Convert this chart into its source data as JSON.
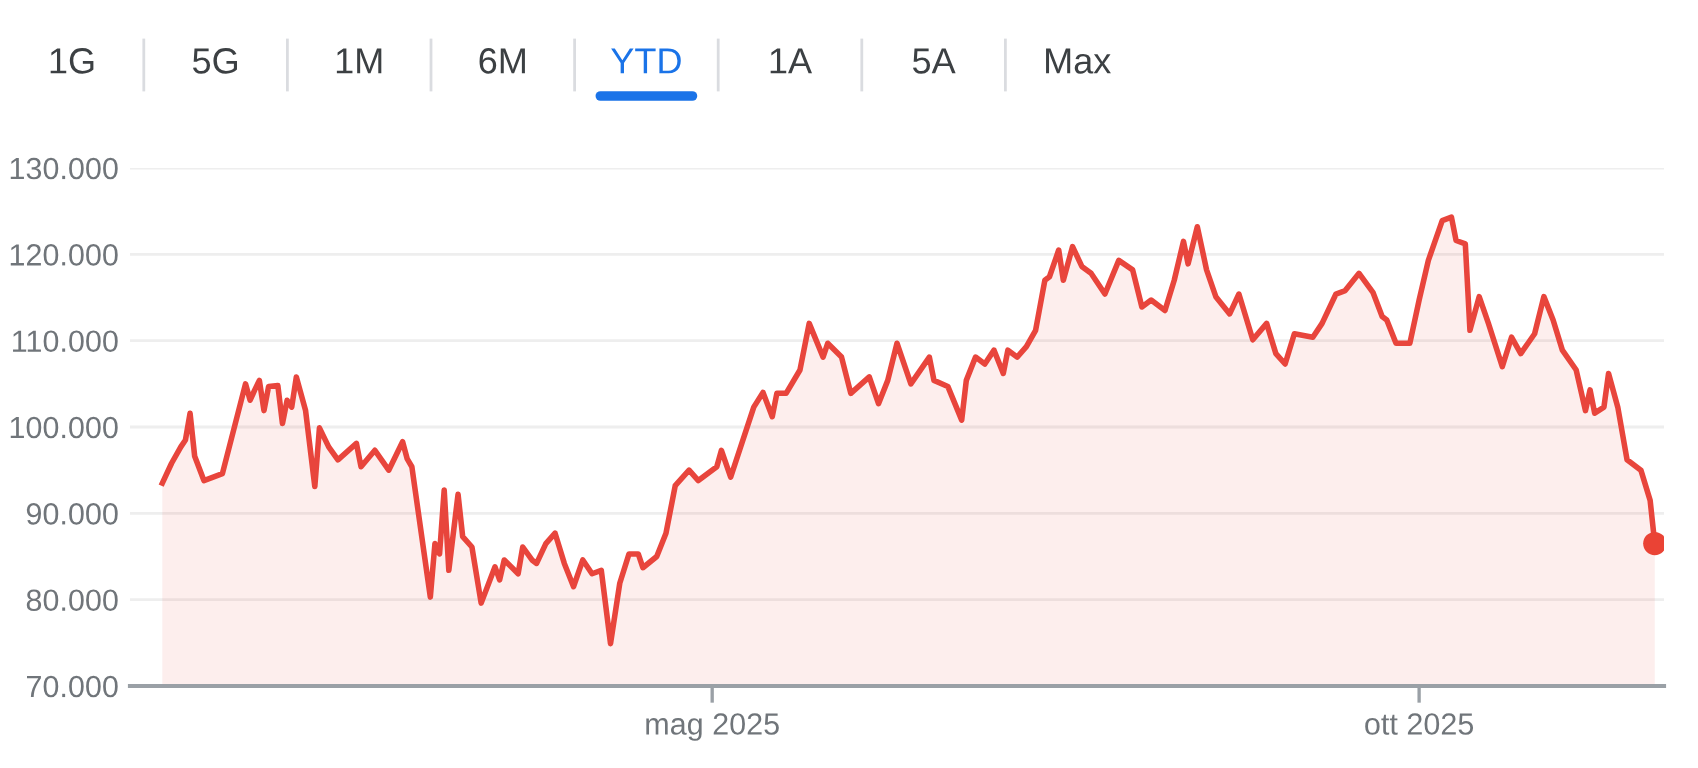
{
  "chart_data": {
    "type": "area",
    "annotations": [
      "1G",
      "5G",
      "1M",
      "6M",
      "YTD",
      "1A",
      "5A",
      "Max"
    ],
    "x": [
      "2025-01-02",
      "2025-01-04",
      "2025-01-06",
      "2025-01-07",
      "2025-01-08",
      "2025-01-09",
      "2025-01-11",
      "2025-01-15",
      "2025-01-20",
      "2025-01-21",
      "2025-01-22",
      "2025-01-23",
      "2025-01-24",
      "2025-01-25",
      "2025-01-27",
      "2025-01-28",
      "2025-01-29",
      "2025-01-30",
      "2025-01-31",
      "2025-02-02",
      "2025-02-04",
      "2025-02-05",
      "2025-02-07",
      "2025-02-09",
      "2025-02-13",
      "2025-02-14",
      "2025-02-17",
      "2025-02-20",
      "2025-02-23",
      "2025-02-24",
      "2025-02-25",
      "2025-03-01",
      "2025-03-02",
      "2025-03-03",
      "2025-03-04",
      "2025-03-05",
      "2025-03-07",
      "2025-03-08",
      "2025-03-10",
      "2025-03-12",
      "2025-03-15",
      "2025-03-16",
      "2025-03-17",
      "2025-03-20",
      "2025-03-21",
      "2025-03-23",
      "2025-03-24",
      "2025-03-26",
      "2025-03-28",
      "2025-03-30",
      "2025-04-01",
      "2025-04-03",
      "2025-04-05",
      "2025-04-07",
      "2025-04-09",
      "2025-04-11",
      "2025-04-13",
      "2025-04-15",
      "2025-04-16",
      "2025-04-19",
      "2025-04-21",
      "2025-04-23",
      "2025-04-26",
      "2025-04-28",
      "2025-05-02",
      "2025-05-03",
      "2025-05-05",
      "2025-05-10",
      "2025-05-12",
      "2025-05-14",
      "2025-05-15",
      "2025-05-17",
      "2025-05-20",
      "2025-05-22",
      "2025-05-25",
      "2025-05-26",
      "2025-05-29",
      "2025-05-31",
      "2025-06-04",
      "2025-06-06",
      "2025-06-08",
      "2025-06-10",
      "2025-06-13",
      "2025-06-17",
      "2025-06-18",
      "2025-06-21",
      "2025-06-24",
      "2025-06-25",
      "2025-06-27",
      "2025-06-29",
      "2025-07-01",
      "2025-07-03",
      "2025-07-04",
      "2025-07-06",
      "2025-07-08",
      "2025-07-10",
      "2025-07-12",
      "2025-07-13",
      "2025-07-15",
      "2025-07-16",
      "2025-07-18",
      "2025-07-20",
      "2025-07-22",
      "2025-07-25",
      "2025-07-28",
      "2025-07-31",
      "2025-08-02",
      "2025-08-04",
      "2025-08-07",
      "2025-08-09",
      "2025-08-11",
      "2025-08-12",
      "2025-08-14",
      "2025-08-16",
      "2025-08-18",
      "2025-08-21",
      "2025-08-23",
      "2025-08-26",
      "2025-08-29",
      "2025-08-31",
      "2025-09-02",
      "2025-09-04",
      "2025-09-08",
      "2025-09-10",
      "2025-09-13",
      "2025-09-15",
      "2025-09-18",
      "2025-09-21",
      "2025-09-23",
      "2025-09-24",
      "2025-09-26",
      "2025-09-29",
      "2025-10-01",
      "2025-10-03",
      "2025-10-06",
      "2025-10-08",
      "2025-10-09",
      "2025-10-11",
      "2025-10-12",
      "2025-10-14",
      "2025-10-16",
      "2025-10-19",
      "2025-10-21",
      "2025-10-23",
      "2025-10-26",
      "2025-10-28",
      "2025-10-30",
      "2025-11-01",
      "2025-11-04",
      "2025-11-06",
      "2025-11-07",
      "2025-11-08",
      "2025-11-10",
      "2025-11-11",
      "2025-11-13",
      "2025-11-15",
      "2025-11-18",
      "2025-11-20",
      "2025-11-21"
    ],
    "series": [
      {
        "color": "#e8453c",
        "marker": "none",
        "values": [
          93500,
          95800,
          97700,
          98500,
          101600,
          96600,
          93800,
          94600,
          105000,
          103100,
          104300,
          105400,
          101900,
          104700,
          104800,
          100400,
          103100,
          102300,
          105800,
          101900,
          93100,
          99900,
          97700,
          96200,
          98100,
          95400,
          97300,
          95000,
          98300,
          96300,
          95400,
          80300,
          86500,
          85300,
          92700,
          83400,
          92200,
          87300,
          86100,
          79600,
          83800,
          82300,
          84600,
          83000,
          86100,
          84600,
          84200,
          86500,
          87700,
          84200,
          81500,
          84600,
          83000,
          83400,
          74900,
          81900,
          85300,
          85300,
          83700,
          85000,
          87700,
          93200,
          95000,
          93800,
          95400,
          97300,
          94200,
          102300,
          104000,
          101200,
          103900,
          103900,
          106600,
          112000,
          108100,
          109700,
          108100,
          103900,
          105800,
          102700,
          105400,
          109700,
          105000,
          108100,
          105400,
          104700,
          100800,
          105400,
          108100,
          107300,
          108900,
          106200,
          108900,
          108100,
          109300,
          111200,
          117000,
          117400,
          120500,
          117000,
          120900,
          118600,
          117800,
          115400,
          119300,
          118200,
          113900,
          114700,
          113500,
          117000,
          121500,
          118900,
          123200,
          118200,
          115100,
          113100,
          115400,
          110100,
          112000,
          108500,
          107300,
          110800,
          110400,
          112000,
          115400,
          115800,
          117800,
          115600,
          112800,
          112400,
          109700,
          109700,
          114700,
          119300,
          123900,
          124300,
          121600,
          121200,
          111200,
          115100,
          112000,
          107000,
          110400,
          108500,
          110800,
          115100,
          112400,
          108900,
          106600,
          101900,
          104300,
          101600,
          102300,
          106200,
          102300,
          96200,
          95000,
          91500,
          86500
        ]
      },
      {
        "type": "scatter",
        "color": "#ea4335",
        "marker": "circle",
        "x": [
          "2025-11-21"
        ],
        "values": [
          86500
        ]
      }
    ],
    "xlim": [
      "2024-12-26",
      "2025-11-23"
    ],
    "xticks": [
      {
        "value": "2025-05-01",
        "label": "mag 2025"
      },
      {
        "value": "2025-10-01",
        "label": "ott 2025"
      }
    ],
    "ylim": [
      70000,
      130000
    ],
    "yticks": [
      {
        "value": 70000,
        "label": "70.000"
      },
      {
        "value": 80000,
        "label": "80.000"
      },
      {
        "value": 90000,
        "label": "90.000"
      },
      {
        "value": 100000,
        "label": "100.000"
      },
      {
        "value": 110000,
        "label": "110.000"
      },
      {
        "value": 120000,
        "label": "120.000"
      },
      {
        "value": 130000,
        "label": "130.000"
      }
    ],
    "grid": "y",
    "legend": false
  }
}
